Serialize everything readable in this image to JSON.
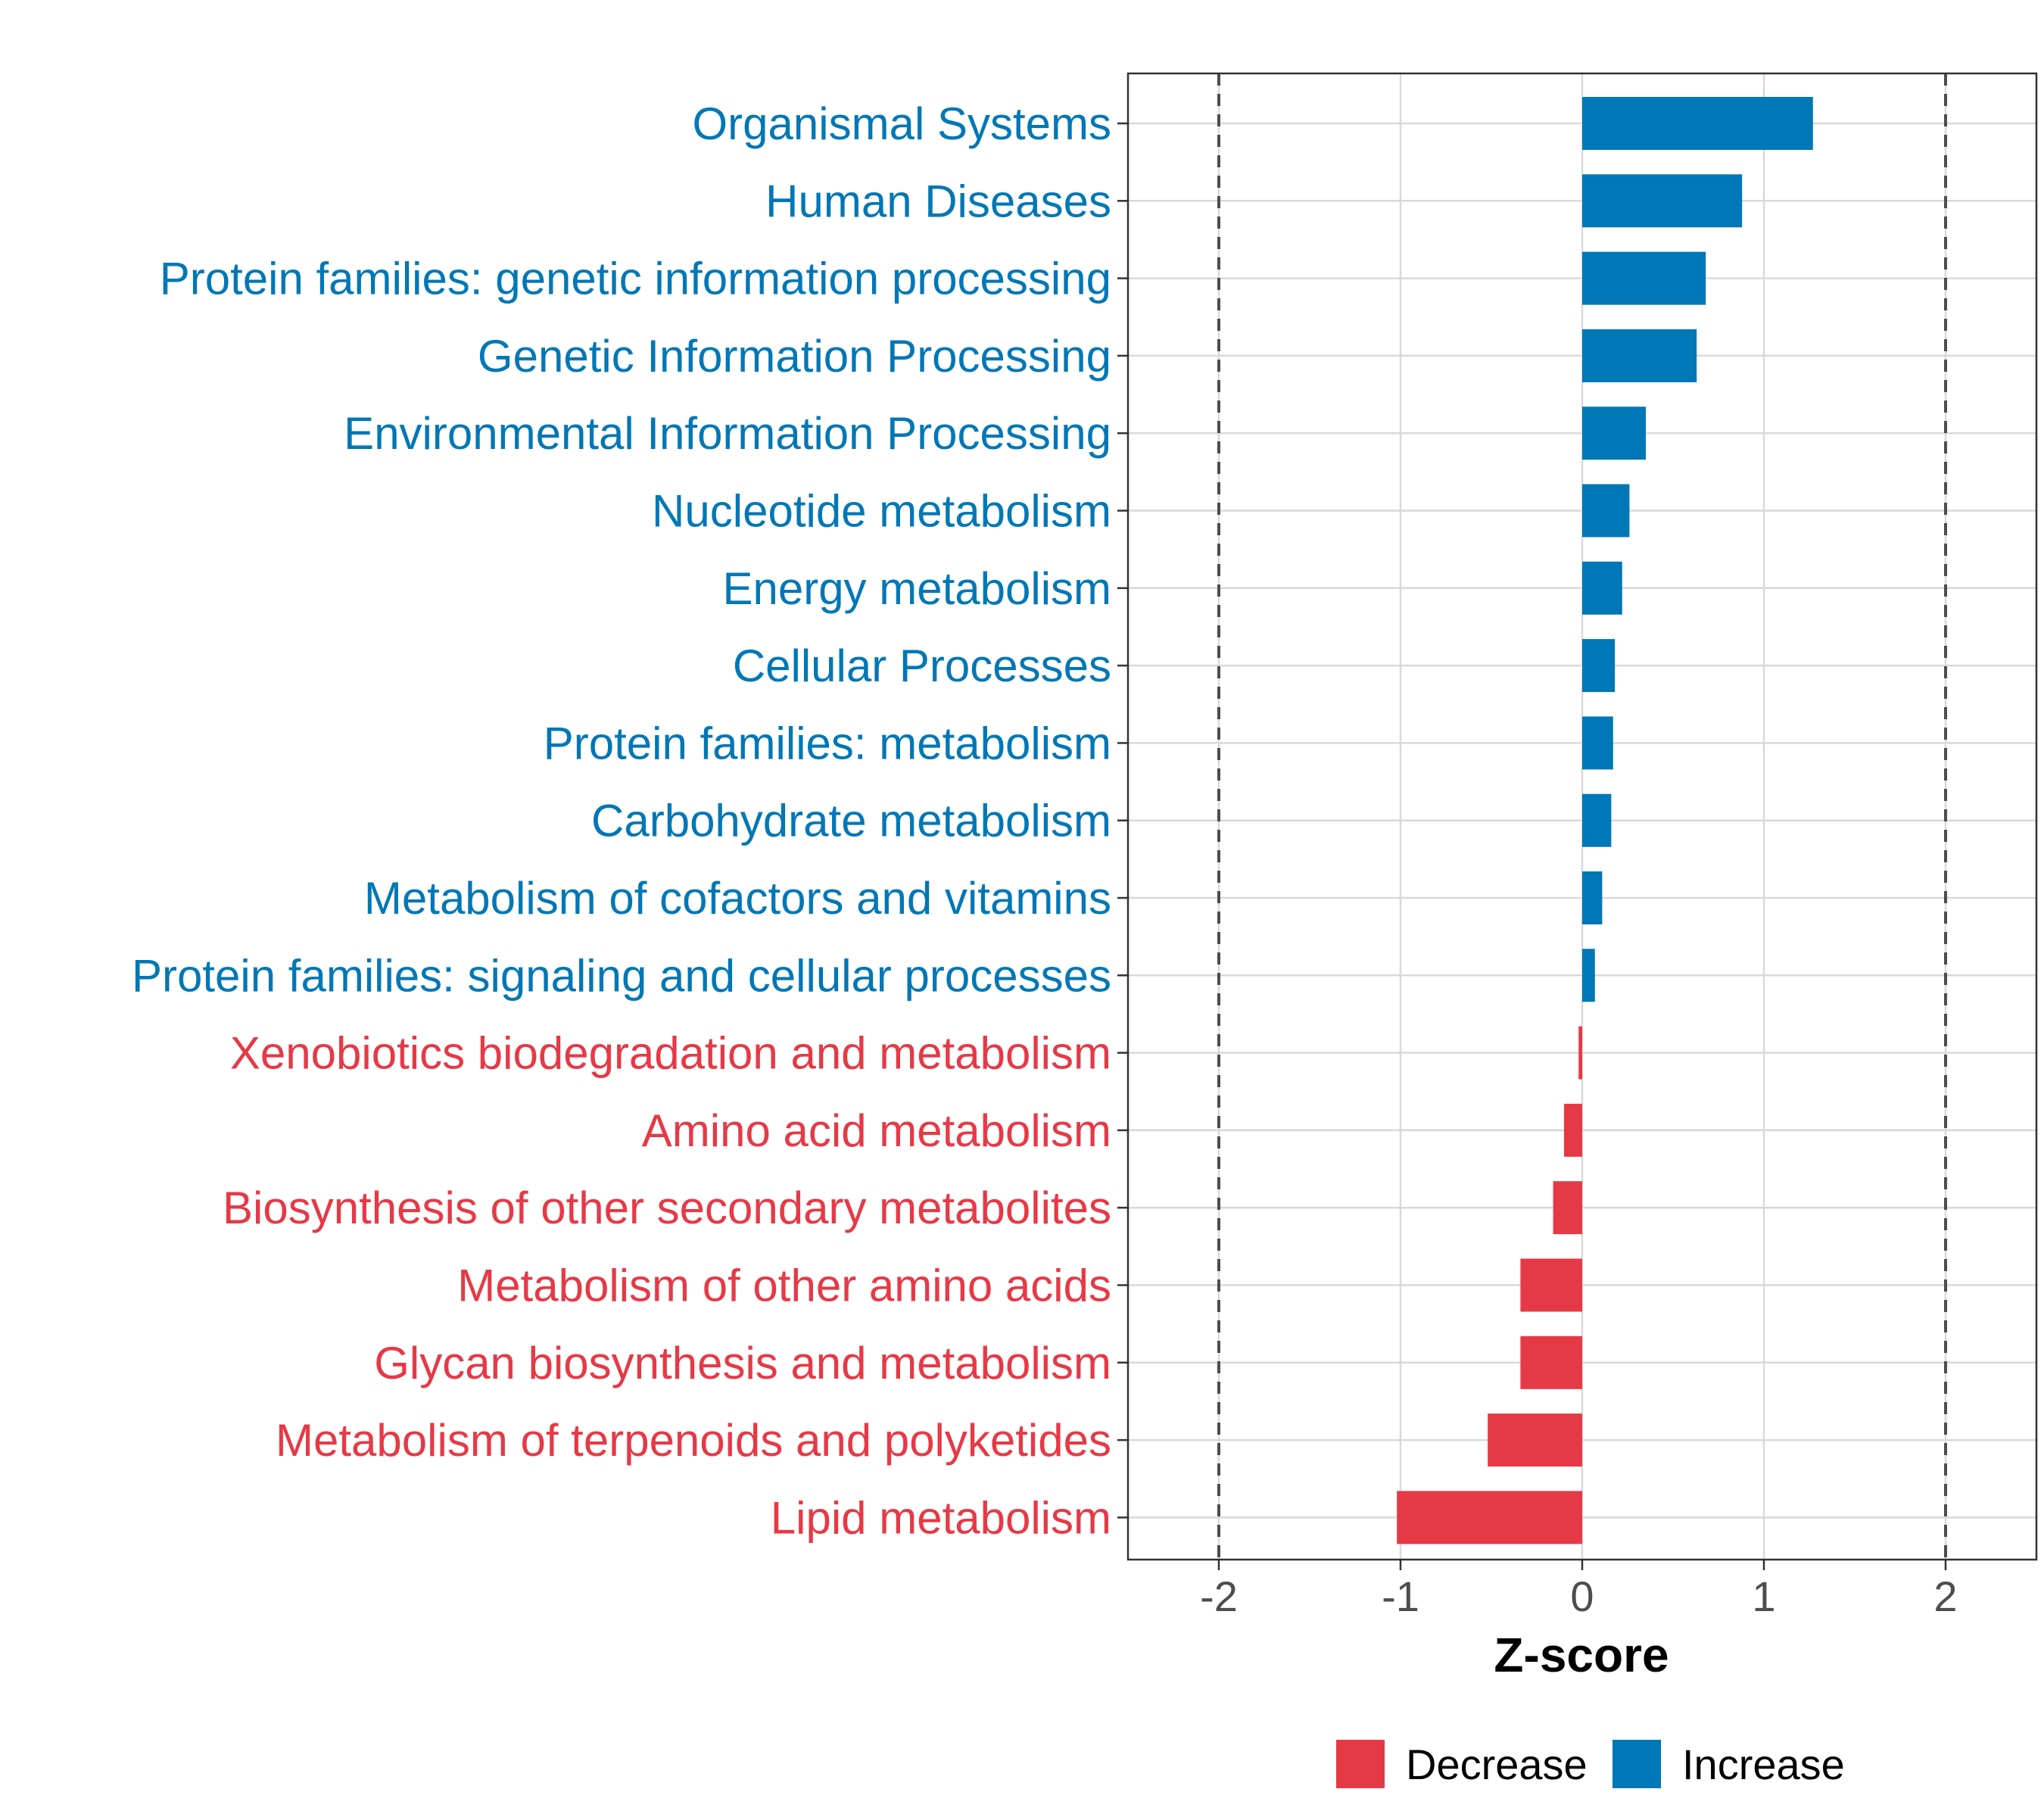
{
  "chart_data": {
    "type": "bar",
    "orientation": "horizontal",
    "xlabel": "Z-score",
    "xlim": [
      -2.5,
      2.5
    ],
    "xticks": [
      -2,
      -1,
      0,
      1,
      2
    ],
    "xtick_labels": [
      "-2",
      "-1",
      "0",
      "1",
      "2"
    ],
    "reference_lines": [
      -2,
      2
    ],
    "grid": true,
    "categories": [
      "Organismal Systems",
      "Human Diseases",
      "Protein families: genetic information processing",
      "Genetic Information Processing",
      "Environmental Information Processing",
      "Nucleotide metabolism",
      "Energy metabolism",
      "Cellular Processes",
      "Protein families: metabolism",
      "Carbohydrate metabolism",
      "Metabolism of cofactors and vitamins",
      "Protein families: signaling and cellular processes",
      "Xenobiotics biodegradation and metabolism",
      "Amino acid metabolism",
      "Biosynthesis of other secondary metabolites",
      "Metabolism of other amino acids",
      "Glycan biosynthesis and metabolism",
      "Metabolism of terpenoids and polyketides",
      "Lipid metabolism"
    ],
    "values": [
      1.27,
      0.88,
      0.68,
      0.63,
      0.35,
      0.26,
      0.22,
      0.18,
      0.17,
      0.16,
      0.11,
      0.07,
      -0.02,
      -0.1,
      -0.16,
      -0.34,
      -0.34,
      -0.52,
      -1.02
    ],
    "groups": [
      "Increase",
      "Increase",
      "Increase",
      "Increase",
      "Increase",
      "Increase",
      "Increase",
      "Increase",
      "Increase",
      "Increase",
      "Increase",
      "Increase",
      "Decrease",
      "Decrease",
      "Decrease",
      "Decrease",
      "Decrease",
      "Decrease",
      "Decrease"
    ],
    "legend": {
      "position": "bottom",
      "items": [
        {
          "label": "Decrease",
          "color": "#E63946"
        },
        {
          "label": "Increase",
          "color": "#0077B6"
        }
      ]
    },
    "colors": {
      "Increase": "#0077B6",
      "Decrease": "#E63946"
    }
  }
}
